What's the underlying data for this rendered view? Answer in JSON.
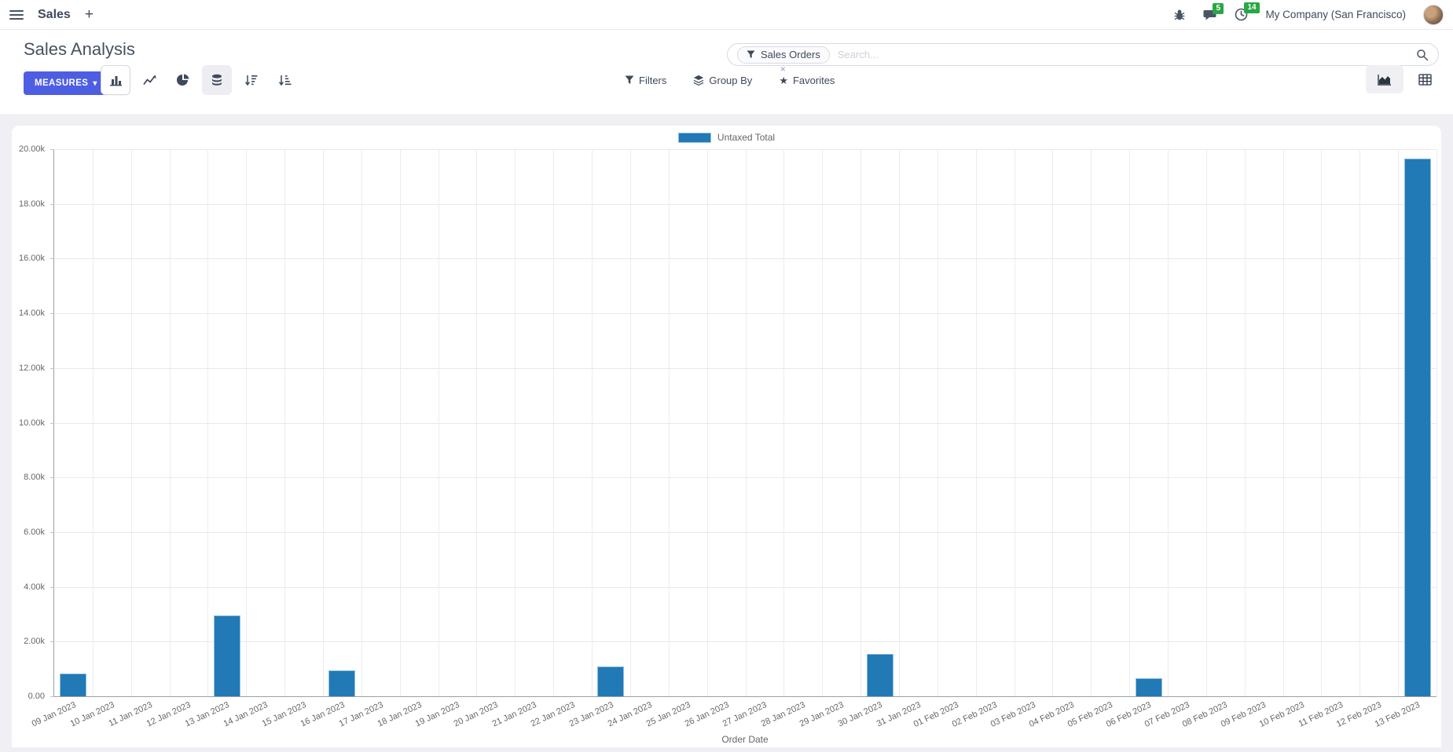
{
  "navbar": {
    "app_name": "Sales",
    "plus_label": "+",
    "messages_badge": "5",
    "activities_badge": "14",
    "company": "My Company (San Francisco)"
  },
  "control_panel": {
    "title": "Sales Analysis",
    "measures_label": "MEASURES",
    "caret": "▾",
    "search": {
      "facet_label": "Sales Orders",
      "placeholder": "Search...",
      "remove_label": "×"
    },
    "filters_label": "Filters",
    "group_by_label": "Group By",
    "favorites_label": "Favorites",
    "star_glyph": "★"
  },
  "colors": {
    "primary_button": "#4e5ee3",
    "badge_green": "#28a745",
    "bar_blue": "#2179b5"
  },
  "chart_data": {
    "type": "bar",
    "title": "",
    "legend": "Untaxed Total",
    "legend_position": "top",
    "bar_color": "#2179b5",
    "xlabel": "Order Date",
    "ylabel": "",
    "ylim": [
      0,
      20000
    ],
    "grid": true,
    "y_ticks": [
      "0.00",
      "2.00k",
      "4.00k",
      "6.00k",
      "8.00k",
      "10.00k",
      "12.00k",
      "14.00k",
      "16.00k",
      "18.00k",
      "20.00k"
    ],
    "categories": [
      "09 Jan 2023",
      "10 Jan 2023",
      "11 Jan 2023",
      "12 Jan 2023",
      "13 Jan 2023",
      "14 Jan 2023",
      "15 Jan 2023",
      "16 Jan 2023",
      "17 Jan 2023",
      "18 Jan 2023",
      "19 Jan 2023",
      "20 Jan 2023",
      "21 Jan 2023",
      "22 Jan 2023",
      "23 Jan 2023",
      "24 Jan 2023",
      "25 Jan 2023",
      "26 Jan 2023",
      "27 Jan 2023",
      "28 Jan 2023",
      "29 Jan 2023",
      "30 Jan 2023",
      "31 Jan 2023",
      "01 Feb 2023",
      "02 Feb 2023",
      "03 Feb 2023",
      "04 Feb 2023",
      "05 Feb 2023",
      "06 Feb 2023",
      "07 Feb 2023",
      "08 Feb 2023",
      "09 Feb 2023",
      "10 Feb 2023",
      "11 Feb 2023",
      "12 Feb 2023",
      "13 Feb 2023"
    ],
    "values": [
      830,
      0,
      0,
      0,
      2950,
      0,
      0,
      950,
      0,
      0,
      0,
      0,
      0,
      0,
      1090,
      0,
      0,
      0,
      0,
      0,
      0,
      1550,
      0,
      0,
      0,
      0,
      0,
      0,
      660,
      0,
      0,
      0,
      0,
      0,
      0,
      19650
    ]
  }
}
